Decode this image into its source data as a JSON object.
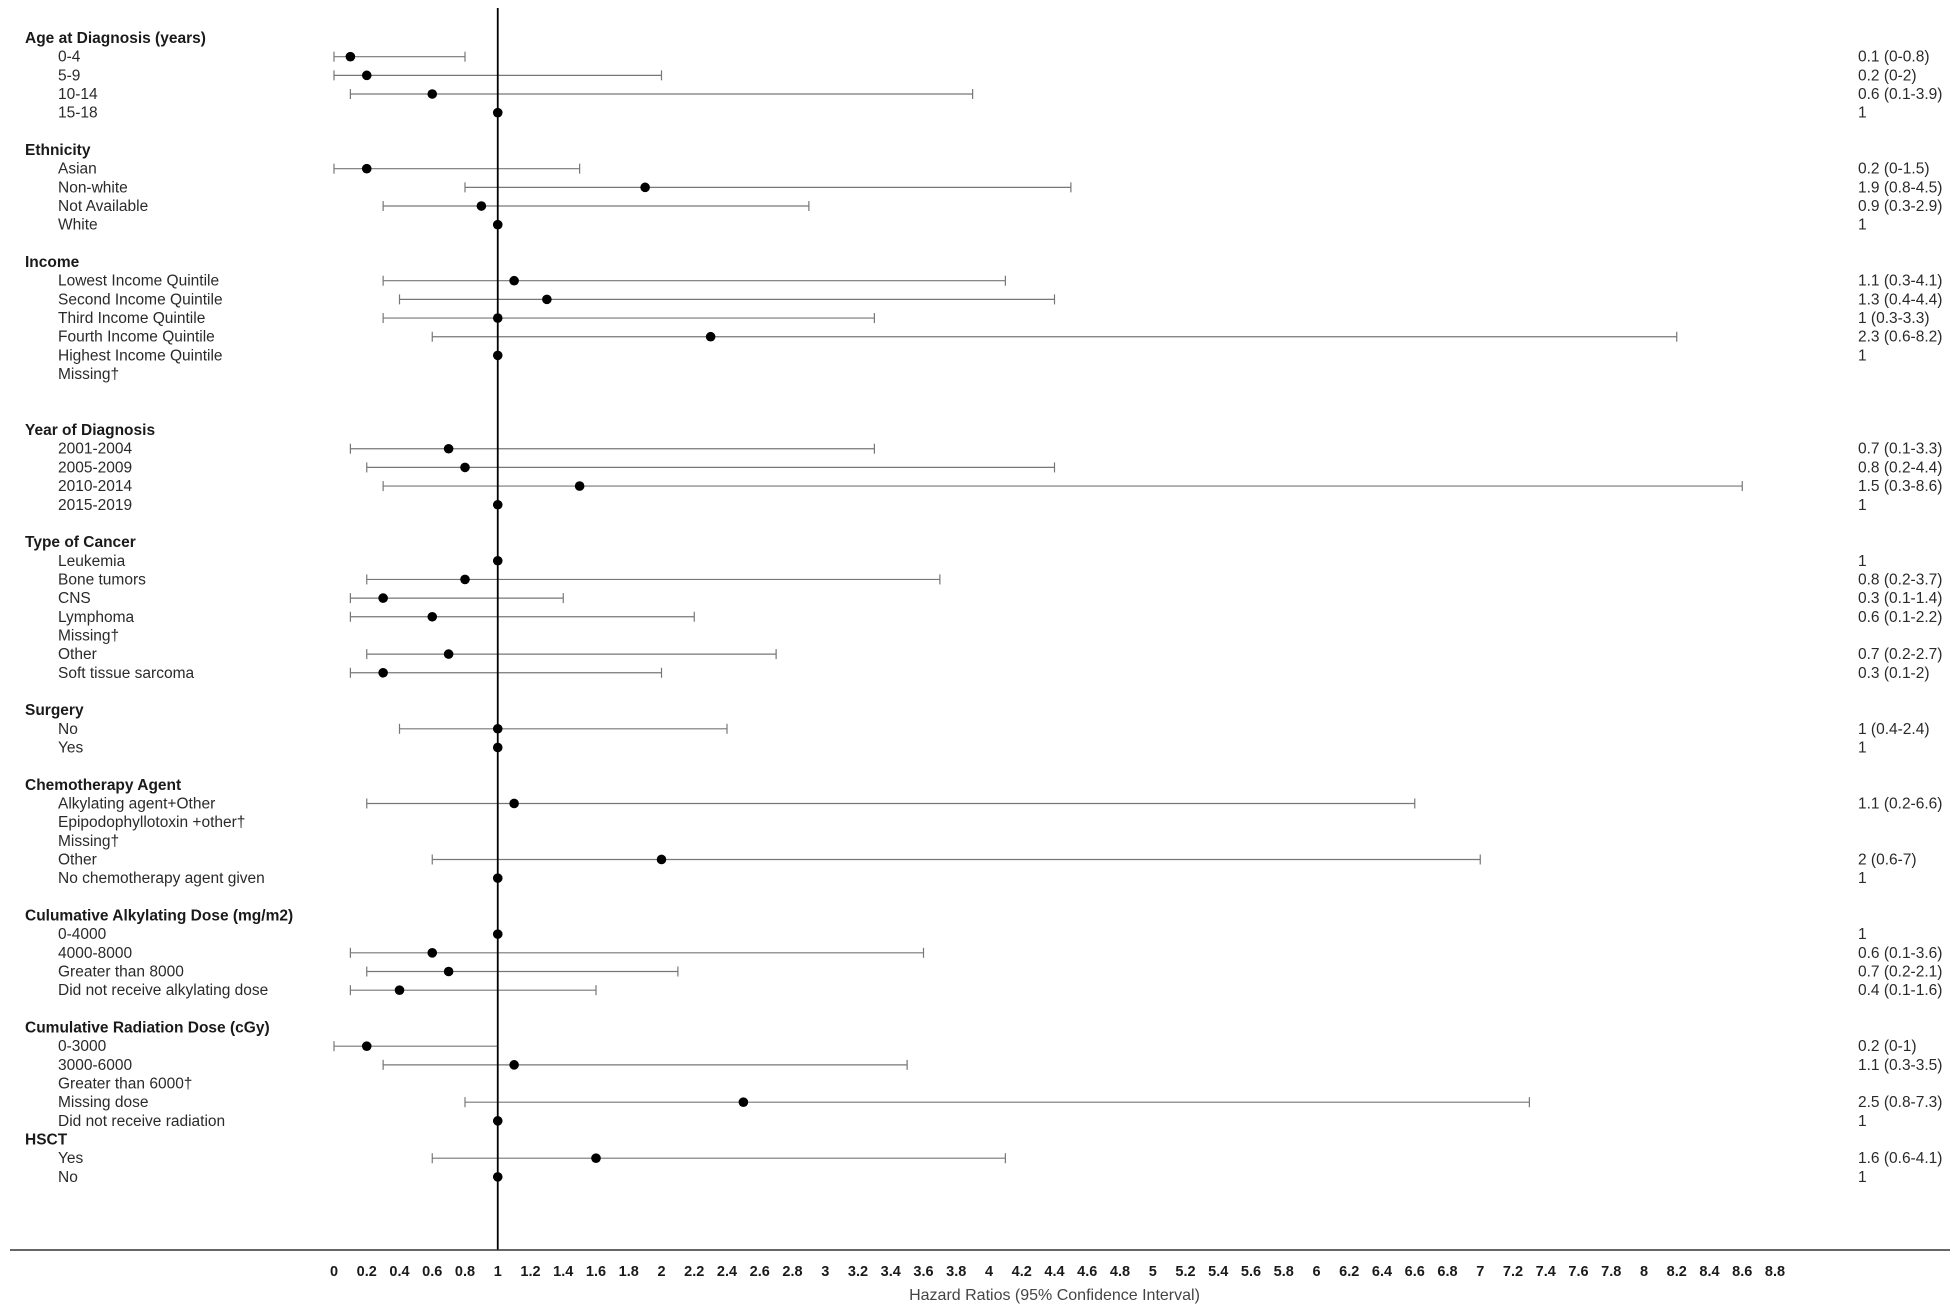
{
  "chart_data": {
    "type": "forest",
    "xlabel": "Hazard Ratios (95% Confidence Interval)",
    "xlim": [
      0,
      8.8
    ],
    "reference_line": 1,
    "tick_values": [
      0,
      0.2,
      0.4,
      0.6,
      0.8,
      1,
      1.2,
      1.4,
      1.6,
      1.8,
      2,
      2.2,
      2.4,
      2.6,
      2.8,
      3,
      3.2,
      3.4,
      3.6,
      3.8,
      4,
      4.2,
      4.4,
      4.6,
      4.8,
      5,
      5.2,
      5.4,
      5.6,
      5.8,
      6,
      6.2,
      6.4,
      6.6,
      6.8,
      7,
      7.2,
      7.4,
      7.6,
      7.8,
      8,
      8.2,
      8.4,
      8.6,
      8.8
    ],
    "tick_labels": [
      "0",
      "0.2",
      "0.4",
      "0.6",
      "0.8",
      "1",
      "1.2",
      "1.4",
      "1.6",
      "1.8",
      "2",
      "2.2",
      "2.4",
      "2.6",
      "2.8",
      "3",
      "3.2",
      "3.4",
      "3.6",
      "3.8",
      "4",
      "4.2",
      "4.4",
      "4.6",
      "4.8",
      "5",
      "5.2",
      "5.4",
      "5.6",
      "5.8",
      "6",
      "6.2",
      "6.4",
      "6.6",
      "6.8",
      "7",
      "7.2",
      "7.4",
      "7.6",
      "7.8",
      "8",
      "8.2",
      "8.4",
      "8.6",
      "8.8"
    ],
    "rows": [
      {
        "kind": "group",
        "label": "Age at Diagnosis (years)"
      },
      {
        "kind": "item",
        "label": "0-4",
        "est": 0.1,
        "lo": 0.0,
        "hi": 0.8,
        "text": "0.1 (0-0.8)"
      },
      {
        "kind": "item",
        "label": "5-9",
        "est": 0.2,
        "lo": 0.0,
        "hi": 2.0,
        "text": "0.2 (0-2)"
      },
      {
        "kind": "item",
        "label": "10-14",
        "est": 0.6,
        "lo": 0.1,
        "hi": 3.9,
        "text": "0.6 (0.1-3.9)"
      },
      {
        "kind": "item",
        "label": "15-18",
        "est": 1,
        "text": "1"
      },
      {
        "kind": "gap"
      },
      {
        "kind": "group",
        "label": "Ethnicity"
      },
      {
        "kind": "item",
        "label": "Asian",
        "est": 0.2,
        "lo": 0.0,
        "hi": 1.5,
        "text": "0.2 (0-1.5)"
      },
      {
        "kind": "item",
        "label": "Non-white",
        "est": 1.9,
        "lo": 0.8,
        "hi": 4.5,
        "text": "1.9 (0.8-4.5)"
      },
      {
        "kind": "item",
        "label": "Not Available",
        "est": 0.9,
        "lo": 0.3,
        "hi": 2.9,
        "text": "0.9 (0.3-2.9)"
      },
      {
        "kind": "item",
        "label": "White",
        "est": 1,
        "text": "1"
      },
      {
        "kind": "gap"
      },
      {
        "kind": "group",
        "label": "Income"
      },
      {
        "kind": "item",
        "label": "Lowest Income Quintile",
        "est": 1.1,
        "lo": 0.3,
        "hi": 4.1,
        "text": "1.1 (0.3-4.1)"
      },
      {
        "kind": "item",
        "label": "Second Income Quintile",
        "est": 1.3,
        "lo": 0.4,
        "hi": 4.4,
        "text": "1.3 (0.4-4.4)"
      },
      {
        "kind": "item",
        "label": "Third Income Quintile",
        "est": 1.0,
        "lo": 0.3,
        "hi": 3.3,
        "text": "1 (0.3-3.3)"
      },
      {
        "kind": "item",
        "label": "Fourth Income Quintile",
        "est": 2.3,
        "lo": 0.6,
        "hi": 8.2,
        "text": "2.3 (0.6-8.2)"
      },
      {
        "kind": "item",
        "label": "Highest Income Quintile",
        "est": 1,
        "text": "1"
      },
      {
        "kind": "item",
        "label": "Missing†",
        "text": ""
      },
      {
        "kind": "gap"
      },
      {
        "kind": "gap"
      },
      {
        "kind": "group",
        "label": "Year of Diagnosis"
      },
      {
        "kind": "item",
        "label": "2001-2004",
        "est": 0.7,
        "lo": 0.1,
        "hi": 3.3,
        "text": "0.7 (0.1-3.3)"
      },
      {
        "kind": "item",
        "label": "2005-2009",
        "est": 0.8,
        "lo": 0.2,
        "hi": 4.4,
        "text": "0.8 (0.2-4.4)"
      },
      {
        "kind": "item",
        "label": "2010-2014",
        "est": 1.5,
        "lo": 0.3,
        "hi": 8.6,
        "text": "1.5 (0.3-8.6)"
      },
      {
        "kind": "item",
        "label": "2015-2019",
        "est": 1,
        "text": "1"
      },
      {
        "kind": "gap"
      },
      {
        "kind": "group",
        "label": "Type of Cancer"
      },
      {
        "kind": "item",
        "label": "Leukemia",
        "est": 1,
        "text": "1"
      },
      {
        "kind": "item",
        "label": "Bone tumors",
        "est": 0.8,
        "lo": 0.2,
        "hi": 3.7,
        "text": "0.8 (0.2-3.7)"
      },
      {
        "kind": "item",
        "label": "CNS",
        "est": 0.3,
        "lo": 0.1,
        "hi": 1.4,
        "text": "0.3 (0.1-1.4)"
      },
      {
        "kind": "item",
        "label": "Lymphoma",
        "est": 0.6,
        "lo": 0.1,
        "hi": 2.2,
        "text": "0.6 (0.1-2.2)"
      },
      {
        "kind": "item",
        "label": "Missing†",
        "text": ""
      },
      {
        "kind": "item",
        "label": "Other",
        "est": 0.7,
        "lo": 0.2,
        "hi": 2.7,
        "text": "0.7 (0.2-2.7)"
      },
      {
        "kind": "item",
        "label": "Soft tissue sarcoma",
        "est": 0.3,
        "lo": 0.1,
        "hi": 2.0,
        "text": "0.3 (0.1-2)"
      },
      {
        "kind": "gap"
      },
      {
        "kind": "group",
        "label": "Surgery"
      },
      {
        "kind": "item",
        "label": "No",
        "est": 1.0,
        "lo": 0.4,
        "hi": 2.4,
        "text": "1 (0.4-2.4)"
      },
      {
        "kind": "item",
        "label": "Yes",
        "est": 1,
        "text": "1"
      },
      {
        "kind": "gap"
      },
      {
        "kind": "group",
        "label": "Chemotherapy Agent"
      },
      {
        "kind": "item",
        "label": "Alkylating agent+Other",
        "est": 1.1,
        "lo": 0.2,
        "hi": 6.6,
        "text": "1.1 (0.2-6.6)"
      },
      {
        "kind": "item",
        "label": "Epipodophyllotoxin +other†",
        "text": ""
      },
      {
        "kind": "item",
        "label": "Missing†",
        "text": ""
      },
      {
        "kind": "item",
        "label": "Other",
        "est": 2.0,
        "lo": 0.6,
        "hi": 7.0,
        "text": "2 (0.6-7)"
      },
      {
        "kind": "item",
        "label": "No chemotherapy agent given",
        "est": 1,
        "text": "1"
      },
      {
        "kind": "gap"
      },
      {
        "kind": "group",
        "label": "Culumative Alkylating Dose  (mg/m2)"
      },
      {
        "kind": "item",
        "label": "0-4000",
        "est": 1,
        "text": "1"
      },
      {
        "kind": "item",
        "label": "4000-8000",
        "est": 0.6,
        "lo": 0.1,
        "hi": 3.6,
        "text": "0.6 (0.1-3.6)"
      },
      {
        "kind": "item",
        "label": "Greater than 8000",
        "est": 0.7,
        "lo": 0.2,
        "hi": 2.1,
        "text": "0.7 (0.2-2.1)"
      },
      {
        "kind": "item",
        "label": "Did not receive alkylating dose",
        "est": 0.4,
        "lo": 0.1,
        "hi": 1.6,
        "text": "0.4 (0.1-1.6)"
      },
      {
        "kind": "gap"
      },
      {
        "kind": "group",
        "label": "Cumulative Radiation Dose (cGy)"
      },
      {
        "kind": "item",
        "label": "0-3000",
        "est": 0.2,
        "lo": 0.0,
        "hi": 1.0,
        "text": "0.2 (0-1)"
      },
      {
        "kind": "item",
        "label": "3000-6000",
        "est": 1.1,
        "lo": 0.3,
        "hi": 3.5,
        "text": "1.1 (0.3-3.5)"
      },
      {
        "kind": "item",
        "label": "Greater than 6000†",
        "text": ""
      },
      {
        "kind": "item",
        "label": "Missing dose",
        "est": 2.5,
        "lo": 0.8,
        "hi": 7.3,
        "text": "2.5 (0.8-7.3)"
      },
      {
        "kind": "item",
        "label": "Did not receive radiation",
        "est": 1,
        "text": "1"
      },
      {
        "kind": "group",
        "label": "HSCT"
      },
      {
        "kind": "item",
        "label": "Yes",
        "est": 1.6,
        "lo": 0.6,
        "hi": 4.1,
        "text": "1.6 (0.6-4.1)"
      },
      {
        "kind": "item",
        "label": "No",
        "est": 1,
        "text": "1"
      }
    ],
    "colors": {
      "marker": "#000000",
      "ci_line": "#777777",
      "ref_line": "#000000",
      "axis": "#333333"
    }
  }
}
